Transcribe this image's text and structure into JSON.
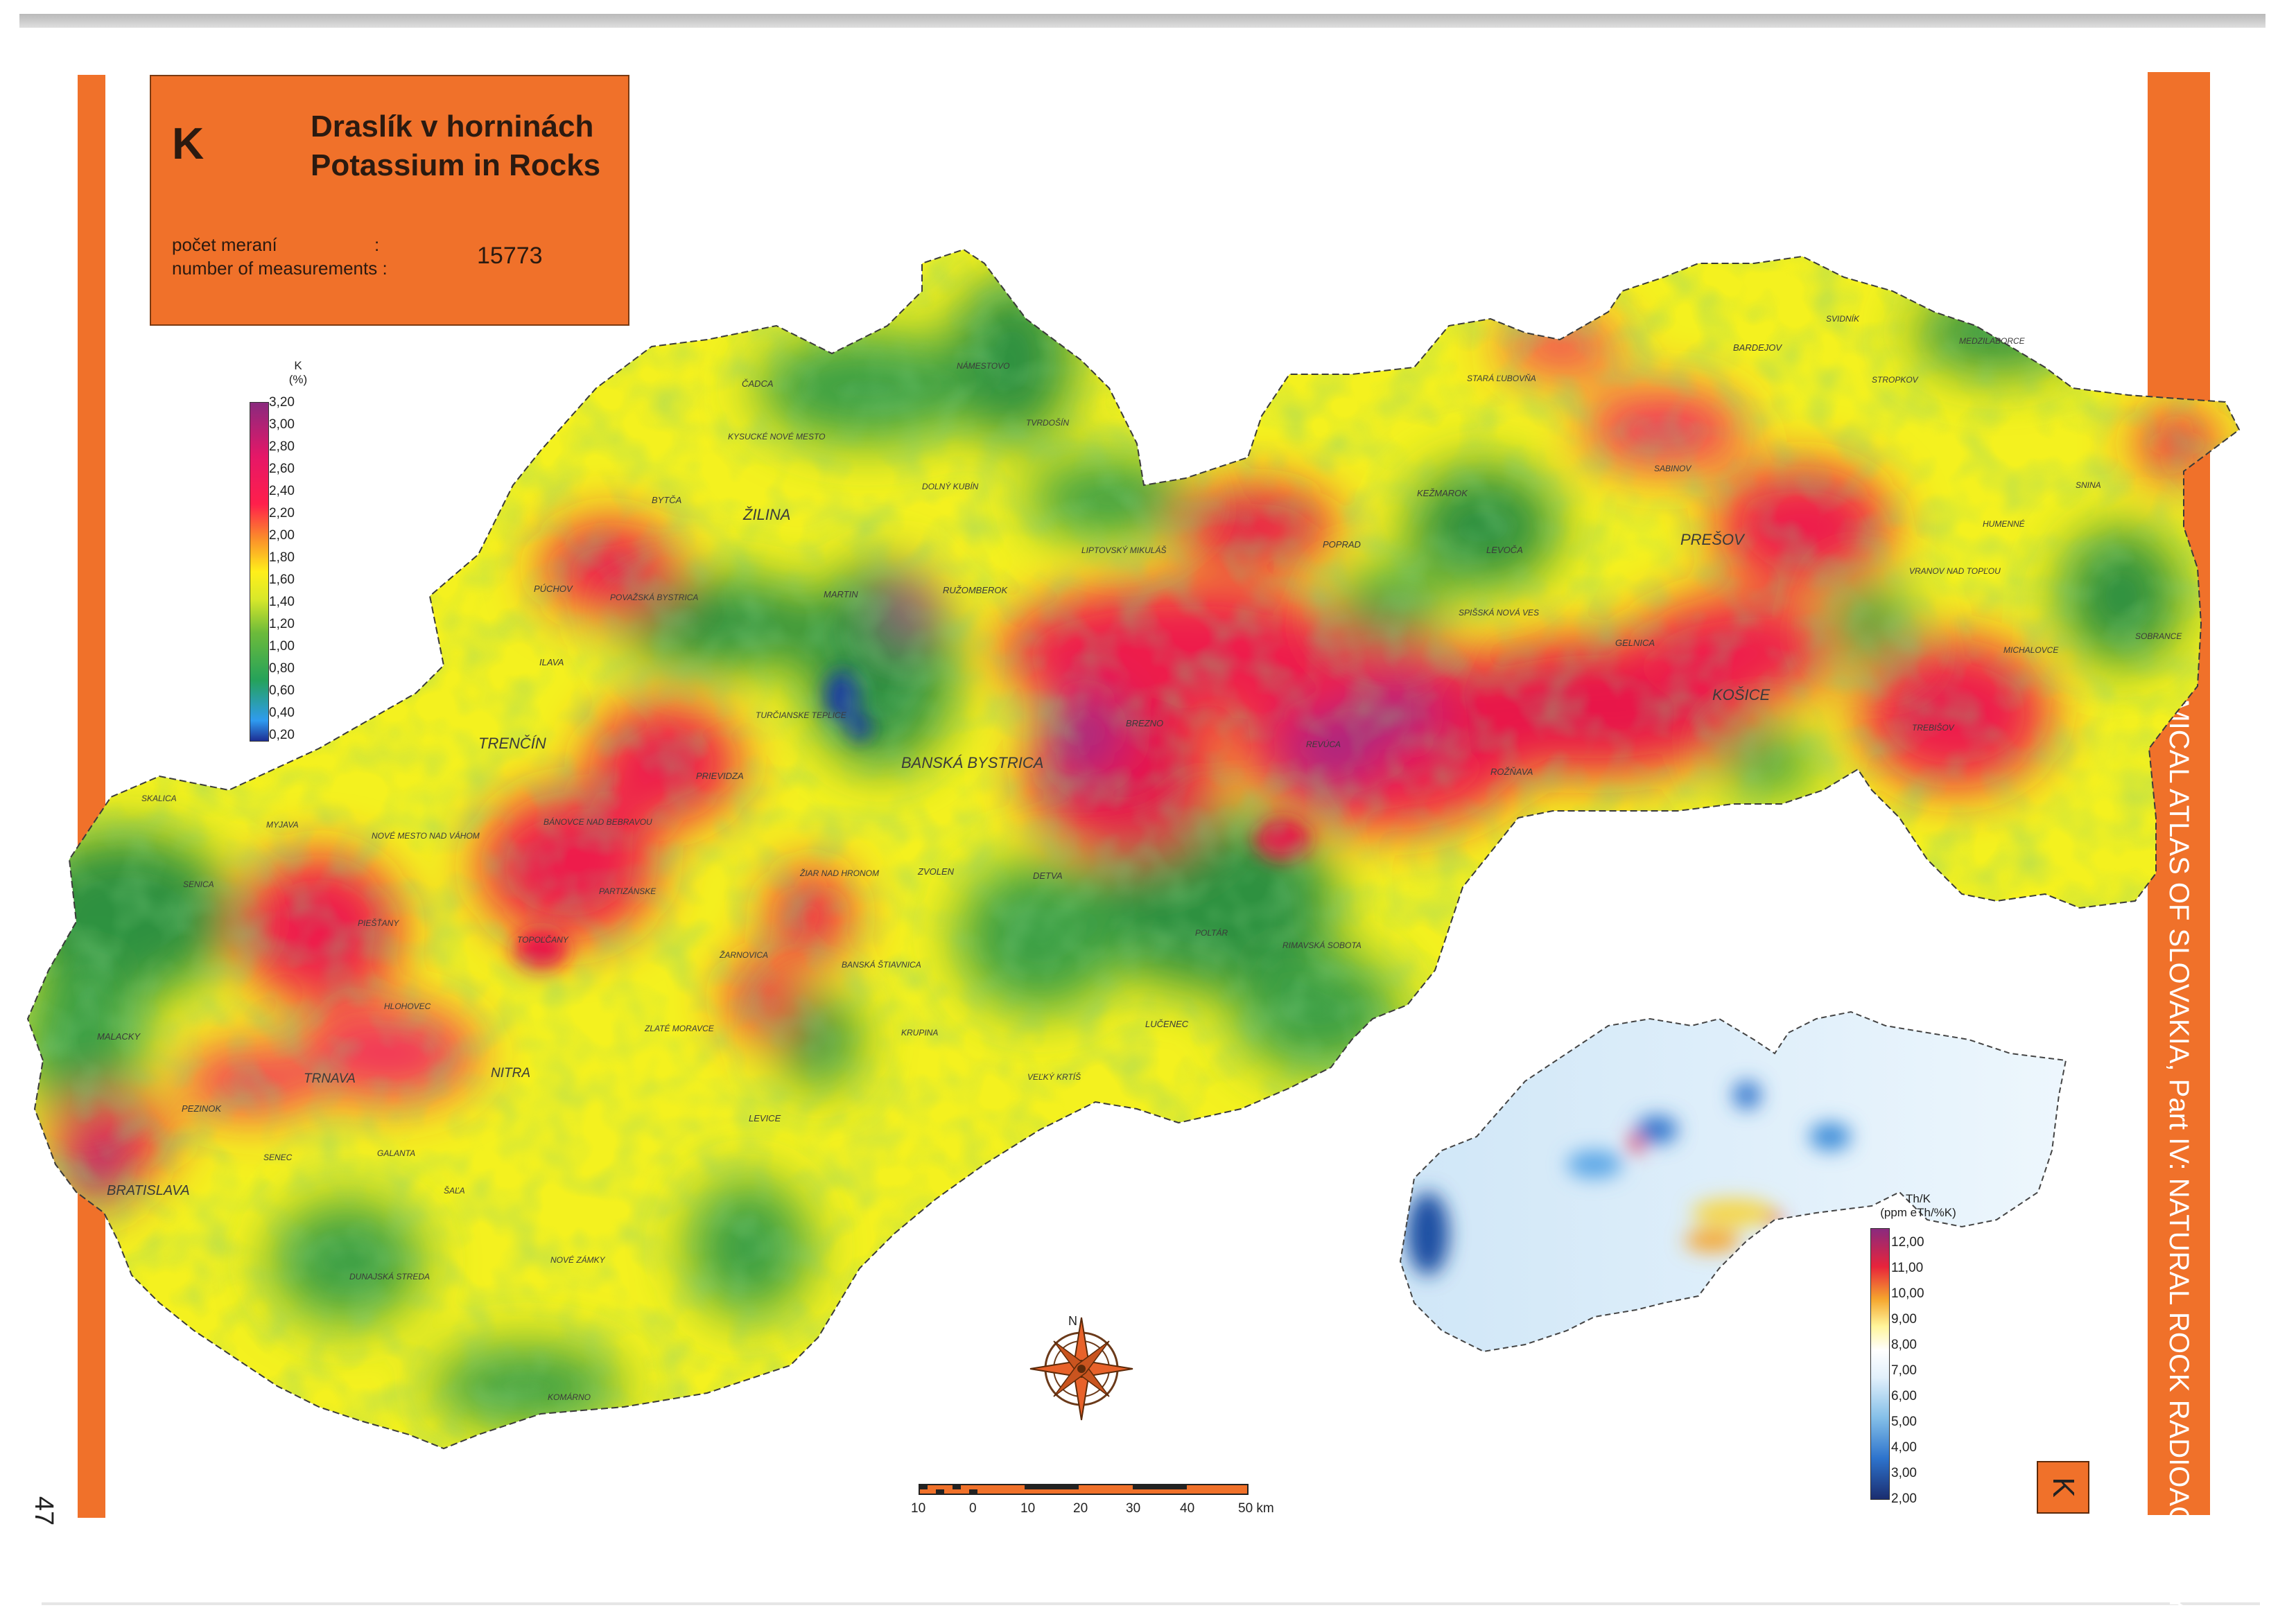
{
  "map": {
    "symbol": "K",
    "title_sk": "Draslík v horninách",
    "title_en": "Potassium in Rocks",
    "count_label_sk": "počet meraní",
    "count_label_en": "number of measurements :",
    "count_colon": ":",
    "count_value": "15773",
    "series_title": "GEOCHEMICAL ATLAS OF SLOVAKIA, Part IV: NATURAL ROCK RADIOACTIVITY",
    "page_number": "47"
  },
  "legend_k": {
    "header1": "K",
    "header2": "(%)",
    "ticks": [
      "3,20",
      "3,00",
      "2,80",
      "2,60",
      "2,40",
      "2,20",
      "2,00",
      "1,80",
      "1,60",
      "1,40",
      "1,20",
      "1,00",
      "0,80",
      "0,60",
      "0,40",
      "0,20"
    ]
  },
  "legend_th": {
    "header1": "Th/K",
    "header2": "(ppm eTh/%K)",
    "ticks": [
      "12,00",
      "11,00",
      "10,00",
      "9,00",
      "8,00",
      "7,00",
      "6,00",
      "5,00",
      "4,00",
      "3,00",
      "2,00"
    ]
  },
  "compass": {
    "north": "N"
  },
  "scale_bar": {
    "labels": [
      "10",
      "0",
      "10",
      "20",
      "30",
      "40",
      "50 km"
    ]
  },
  "inset_label": "K",
  "colors": {
    "accent_orange": "#f0712a",
    "high_k": "#e8174a",
    "mid_k": "#ffef1a",
    "low_k": "#2f9140"
  },
  "cities": [
    "ČADCA",
    "KYSUCKÉ NOVÉ MESTO",
    "NÁMESTOVO",
    "TVRDOŠÍN",
    "DOLNÝ KUBÍN",
    "BYTČA",
    "ŽILINA",
    "PÚCHOV",
    "POVAŽSKÁ BYSTRICA",
    "MARTIN",
    "RUŽOMBEROK",
    "LIPTOVSKÝ MIKULÁŠ",
    "ILAVA",
    "TURČIANSKE TEPLICE",
    "TRENČÍN",
    "PRIEVIDZA",
    "BANSKÁ BYSTRICA",
    "BREZNO",
    "REVÚCA",
    "ROŽŇAVA",
    "STARÁ ĽUBOVŇA",
    "KEŽMAROK",
    "POPRAD",
    "LEVOČA",
    "SPIŠSKÁ NOVÁ VES",
    "GELNICA",
    "PREŠOV",
    "KOŠICE",
    "BARDEJOV",
    "SVIDNÍK",
    "MEDZILABORCE",
    "STROPKOV",
    "SABINOV",
    "SNINA",
    "HUMENNÉ",
    "VRANOV NAD TOPĽOU",
    "MICHALOVCE",
    "SOBRANCE",
    "TREBIŠOV",
    "SKALICA",
    "MYJAVA",
    "NOVÉ MESTO NAD VÁHOM",
    "BÁNOVCE NAD BEBRAVOU",
    "SENICA",
    "PARTIZÁNSKE",
    "PIEŠŤANY",
    "TOPOĽČANY",
    "ŽIAR NAD HRONOM",
    "ZVOLEN",
    "DETVA",
    "ŽARNOVICA",
    "BANSKÁ ŠTIAVNICA",
    "POLTÁR",
    "RIMAVSKÁ SOBOTA",
    "HLOHOVEC",
    "ZLATÉ MORAVCE",
    "KRUPINA",
    "LUČENEC",
    "MALACKY",
    "TRNAVA",
    "NITRA",
    "VEĽKÝ KRTÍŠ",
    "PEZINOK",
    "LEVICE",
    "SENEC",
    "GALANTA",
    "BRATISLAVA",
    "ŠAĽA",
    "NOVÉ ZÁMKY",
    "DUNAJSKÁ STREDA",
    "KOMÁRNO"
  ]
}
